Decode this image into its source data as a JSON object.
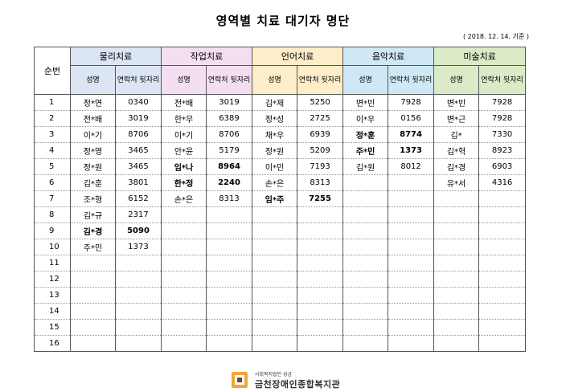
{
  "title": "영역별 치료 대기자 명단",
  "date": "( 2018. 12. 14. 기준 )",
  "seq_header": "순번",
  "name_header": "성명",
  "phone_header": "연락처 뒷자리",
  "areas": [
    {
      "label": "물리치료",
      "color": "#dbe5f3"
    },
    {
      "label": "작업치료",
      "color": "#f4dff1"
    },
    {
      "label": "언어치료",
      "color": "#fdedc9"
    },
    {
      "label": "음악치료",
      "color": "#cfe8f5"
    },
    {
      "label": "미술치료",
      "color": "#dbebc7"
    }
  ],
  "rows": [
    {
      "no": "1",
      "cells": [
        {
          "n": "정*연",
          "p": "0340"
        },
        {
          "n": "전*배",
          "p": "3019"
        },
        {
          "n": "김*제",
          "p": "5250"
        },
        {
          "n": "변*빈",
          "p": "7928"
        },
        {
          "n": "변*빈",
          "p": "7928"
        }
      ]
    },
    {
      "no": "2",
      "cells": [
        {
          "n": "전*배",
          "p": "3019"
        },
        {
          "n": "한*무",
          "p": "6389"
        },
        {
          "n": "정*성",
          "p": "2725"
        },
        {
          "n": "이*우",
          "p": "0156"
        },
        {
          "n": "변*근",
          "p": "7928"
        }
      ]
    },
    {
      "no": "3",
      "cells": [
        {
          "n": "이*기",
          "p": "8706"
        },
        {
          "n": "이*기",
          "p": "8706"
        },
        {
          "n": "채*우",
          "p": "6939"
        },
        {
          "n": "정*훈",
          "p": "8774",
          "b": true
        },
        {
          "n": "김*",
          "p": "7330"
        }
      ]
    },
    {
      "no": "4",
      "cells": [
        {
          "n": "정*영",
          "p": "3465"
        },
        {
          "n": "안*윤",
          "p": "5179"
        },
        {
          "n": "정*원",
          "p": "5209"
        },
        {
          "n": "주*민",
          "p": "1373",
          "b": true
        },
        {
          "n": "김*혁",
          "p": "8923"
        }
      ]
    },
    {
      "no": "5",
      "cells": [
        {
          "n": "정*원",
          "p": "3465"
        },
        {
          "n": "임*나",
          "p": "8964",
          "b": true
        },
        {
          "n": "이*민",
          "p": "7193"
        },
        {
          "n": "김*원",
          "p": "8012"
        },
        {
          "n": "김*경",
          "p": "6903"
        }
      ]
    },
    {
      "no": "6",
      "cells": [
        {
          "n": "김*훈",
          "p": "3801"
        },
        {
          "n": "한*정",
          "p": "2240",
          "b": true
        },
        {
          "n": "손*은",
          "p": "8313"
        },
        {
          "n": "",
          "p": ""
        },
        {
          "n": "유*서",
          "p": "4316"
        }
      ]
    },
    {
      "no": "7",
      "cells": [
        {
          "n": "조*형",
          "p": "6152"
        },
        {
          "n": "손*은",
          "p": "8313"
        },
        {
          "n": "임*주",
          "p": "7255",
          "b": true
        },
        {
          "n": "",
          "p": ""
        },
        {
          "n": "",
          "p": ""
        }
      ]
    },
    {
      "no": "8",
      "cells": [
        {
          "n": "김*규",
          "p": "2317"
        },
        {
          "n": "",
          "p": ""
        },
        {
          "n": "",
          "p": ""
        },
        {
          "n": "",
          "p": ""
        },
        {
          "n": "",
          "p": ""
        }
      ]
    },
    {
      "no": "9",
      "cells": [
        {
          "n": "김*경",
          "p": "5090",
          "b": true
        },
        {
          "n": "",
          "p": ""
        },
        {
          "n": "",
          "p": ""
        },
        {
          "n": "",
          "p": ""
        },
        {
          "n": "",
          "p": ""
        }
      ]
    },
    {
      "no": "10",
      "cells": [
        {
          "n": "주*민",
          "p": "1373"
        },
        {
          "n": "",
          "p": ""
        },
        {
          "n": "",
          "p": ""
        },
        {
          "n": "",
          "p": ""
        },
        {
          "n": "",
          "p": ""
        }
      ]
    },
    {
      "no": "11",
      "cells": []
    },
    {
      "no": "12",
      "cells": []
    },
    {
      "no": "13",
      "cells": []
    },
    {
      "no": "14",
      "cells": []
    },
    {
      "no": "15",
      "cells": []
    },
    {
      "no": "16",
      "cells": []
    }
  ],
  "footer": {
    "org_small": "사회복지법인 성금",
    "org_name": "금천장애인종합복지관",
    "logo_color": "#f2a53a",
    "logo_inner": "#6b4a2a"
  }
}
